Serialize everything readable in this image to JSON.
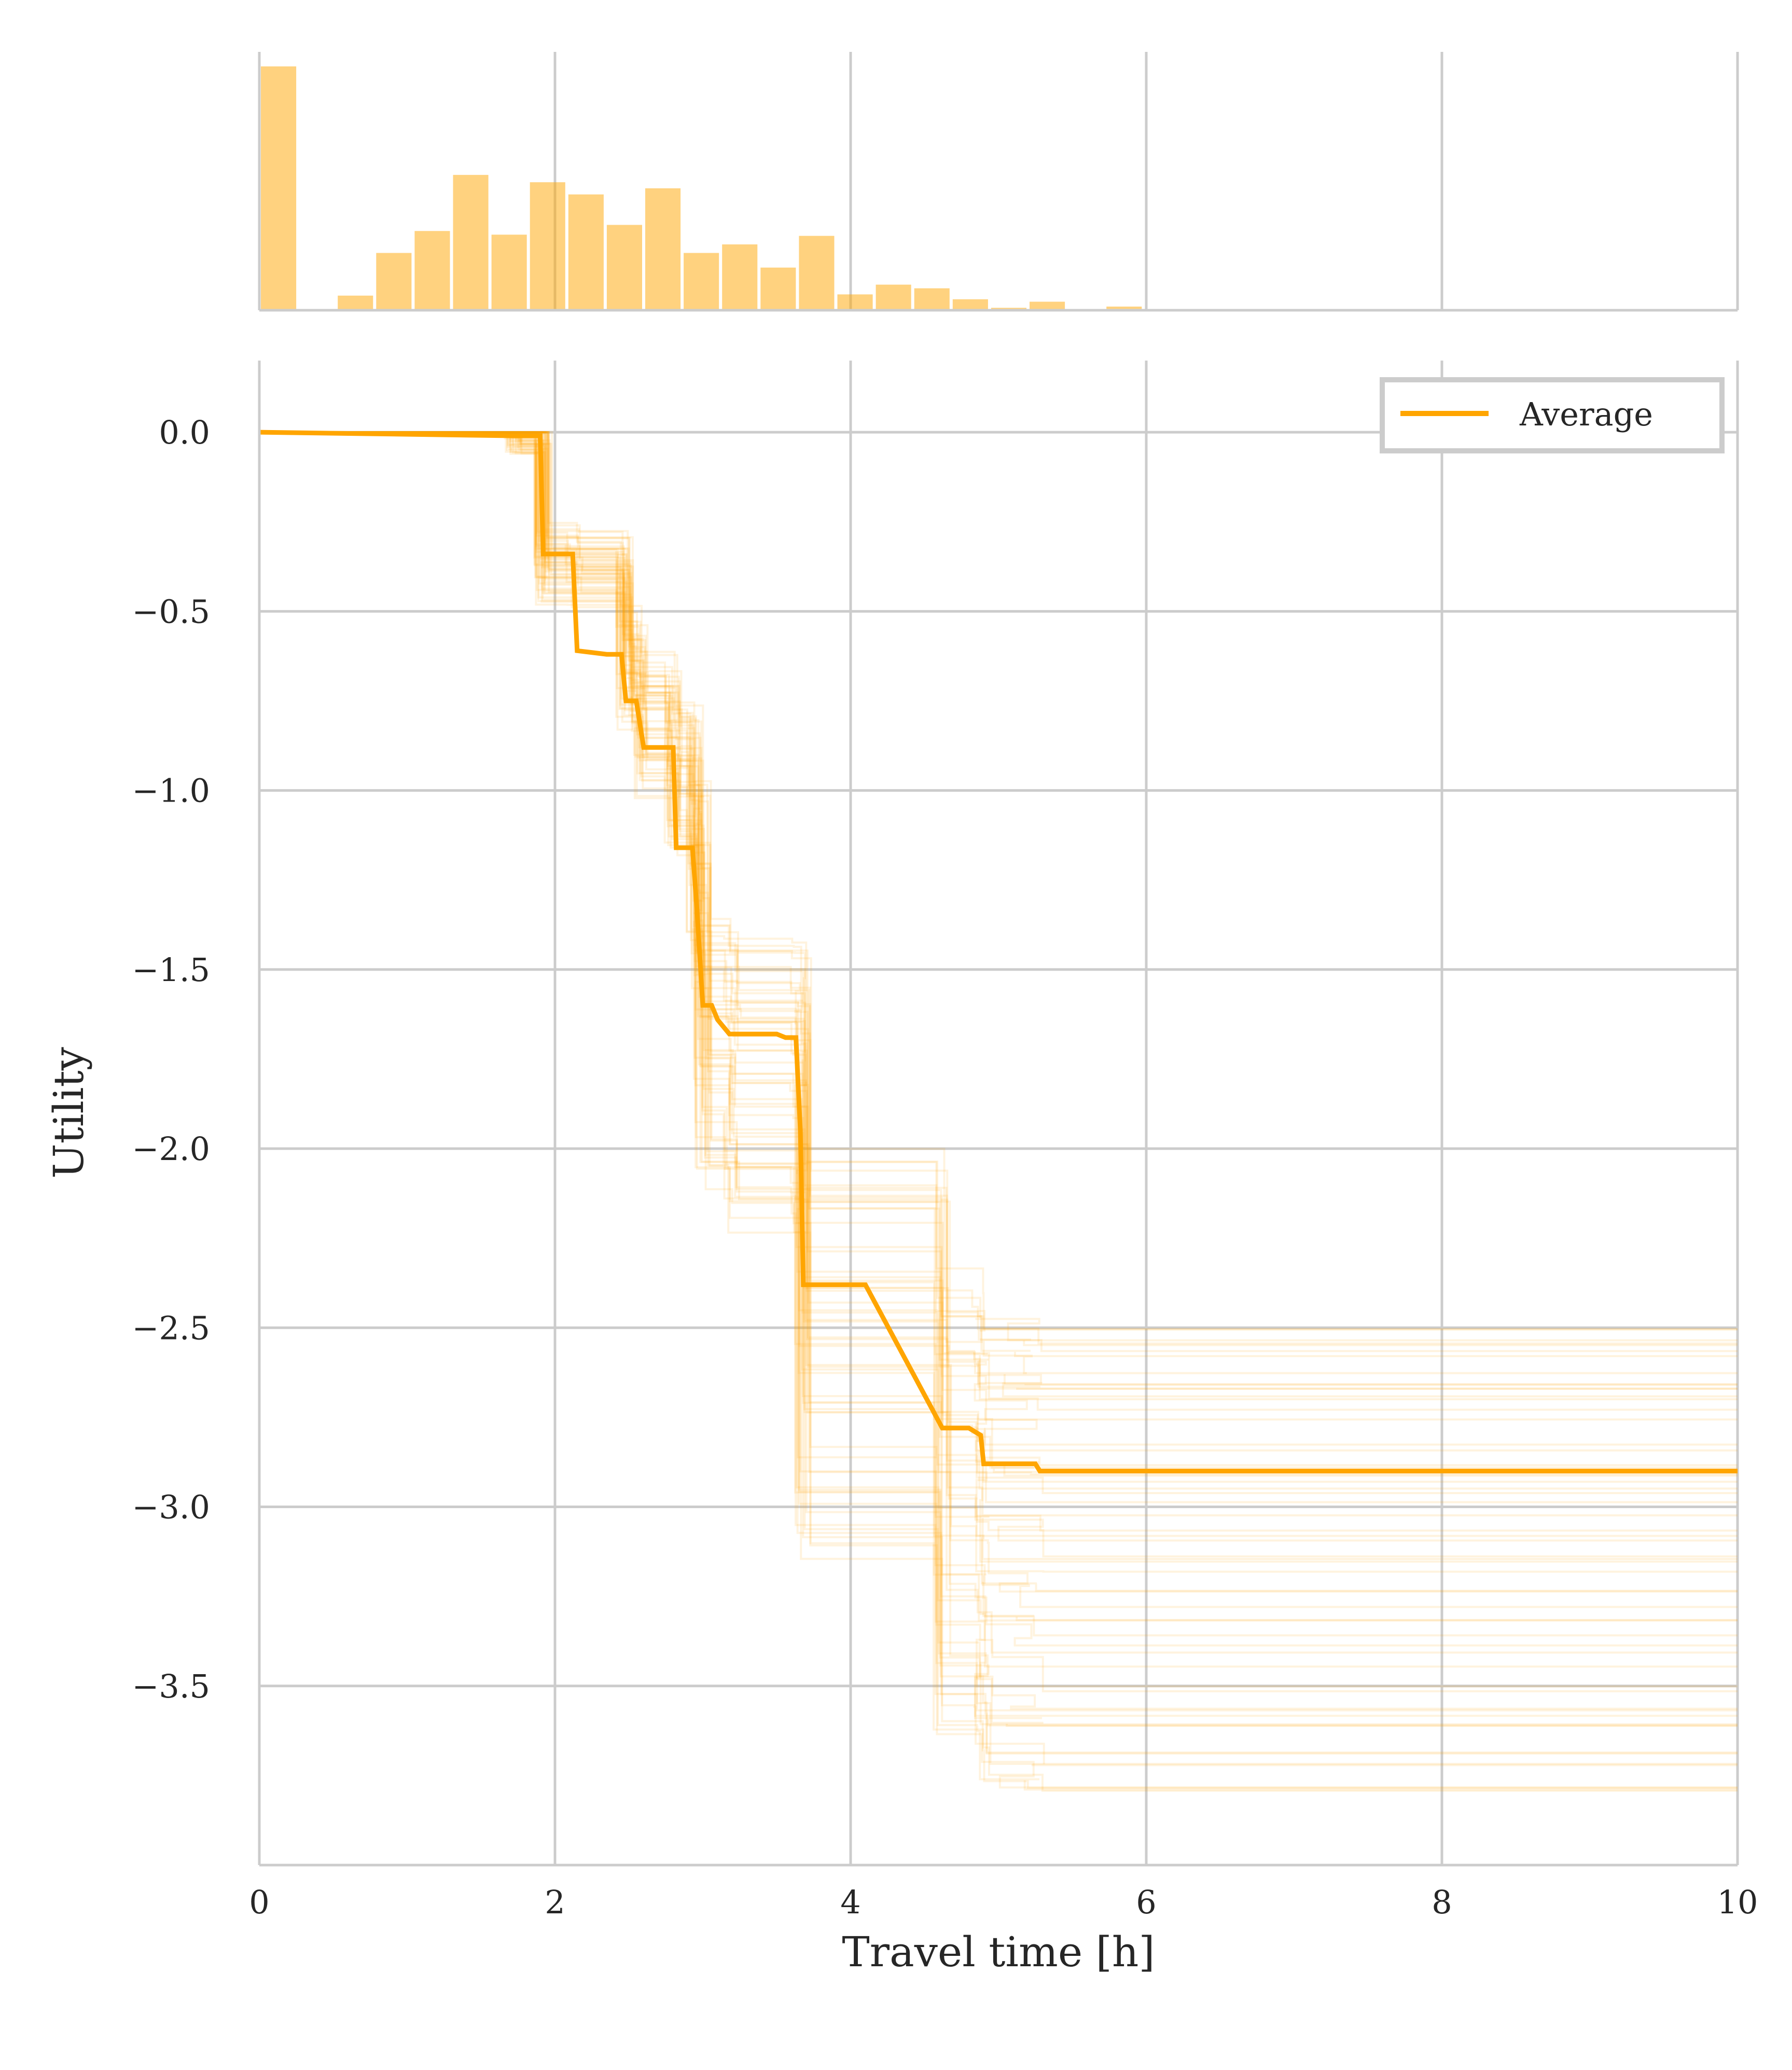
{
  "chart_data": [
    {
      "type": "bar",
      "panel": "marginal-histogram",
      "title": "",
      "xlabel": "",
      "ylabel": "",
      "xlim": [
        0,
        10
      ],
      "bin_width": 0.26,
      "bins": [
        {
          "x0": 0.0,
          "h": 1.0
        },
        {
          "x0": 0.26,
          "h": 0.0
        },
        {
          "x0": 0.52,
          "h": 0.06
        },
        {
          "x0": 0.78,
          "h": 0.235
        },
        {
          "x0": 1.04,
          "h": 0.325
        },
        {
          "x0": 1.3,
          "h": 0.555
        },
        {
          "x0": 1.56,
          "h": 0.31
        },
        {
          "x0": 1.82,
          "h": 0.525
        },
        {
          "x0": 2.08,
          "h": 0.475
        },
        {
          "x0": 2.34,
          "h": 0.35
        },
        {
          "x0": 2.6,
          "h": 0.5
        },
        {
          "x0": 2.86,
          "h": 0.235
        },
        {
          "x0": 3.12,
          "h": 0.27
        },
        {
          "x0": 3.38,
          "h": 0.175
        },
        {
          "x0": 3.64,
          "h": 0.305
        },
        {
          "x0": 3.9,
          "h": 0.065
        },
        {
          "x0": 4.16,
          "h": 0.105
        },
        {
          "x0": 4.42,
          "h": 0.09
        },
        {
          "x0": 4.68,
          "h": 0.045
        },
        {
          "x0": 4.94,
          "h": 0.01
        },
        {
          "x0": 5.2,
          "h": 0.035
        },
        {
          "x0": 5.46,
          "h": 0.0
        },
        {
          "x0": 5.72,
          "h": 0.015
        }
      ],
      "color": "#ffa500"
    },
    {
      "type": "line",
      "panel": "utility-curves",
      "title": "",
      "xlabel": "Travel time [h]",
      "ylabel": "Utility",
      "xlim": [
        0,
        10
      ],
      "ylim": [
        -4.0,
        0.2
      ],
      "x_ticks": [
        0,
        2,
        4,
        6,
        8,
        10
      ],
      "x_tick_labels": [
        "0",
        "2",
        "4",
        "6",
        "8",
        "10"
      ],
      "y_ticks": [
        0.0,
        -0.5,
        -1.0,
        -1.5,
        -2.0,
        -2.5,
        -3.0,
        -3.5
      ],
      "y_tick_labels": [
        "0.0",
        "−0.5",
        "−1.0",
        "−1.5",
        "−2.0",
        "−2.5",
        "−3.0",
        "−3.5"
      ],
      "grid": true,
      "legend_position": "top-right",
      "legend": [
        "Average"
      ],
      "color": "#ffa500",
      "series": [
        {
          "name": "Average",
          "x": [
            0,
            1.72,
            1.9,
            1.92,
            2.12,
            2.15,
            2.35,
            2.45,
            2.48,
            2.55,
            2.6,
            2.8,
            2.82,
            2.93,
            2.96,
            3.0,
            3.06,
            3.1,
            3.18,
            3.5,
            3.56,
            3.63,
            3.66,
            3.68,
            4.1,
            4.62,
            4.8,
            4.88,
            4.9,
            5.25,
            5.28,
            10
          ],
          "y": [
            0.0,
            -0.01,
            -0.01,
            -0.34,
            -0.34,
            -0.61,
            -0.62,
            -0.62,
            -0.75,
            -0.75,
            -0.88,
            -0.88,
            -1.16,
            -1.16,
            -1.33,
            -1.6,
            -1.6,
            -1.64,
            -1.68,
            -1.68,
            -1.69,
            -1.69,
            -1.95,
            -2.38,
            -2.38,
            -2.78,
            -2.78,
            -2.8,
            -2.88,
            -2.88,
            -2.9,
            -2.9
          ]
        }
      ],
      "samples": {
        "count": 60,
        "steps_x": [
          1.72,
          1.92,
          2.13,
          2.47,
          2.57,
          2.8,
          2.95,
          3.0,
          3.2,
          3.65,
          3.68,
          4.62,
          4.88,
          4.9,
          5.25
        ],
        "final_min": -3.8,
        "final_max": -2.43,
        "opacity": 0.13
      }
    }
  ]
}
